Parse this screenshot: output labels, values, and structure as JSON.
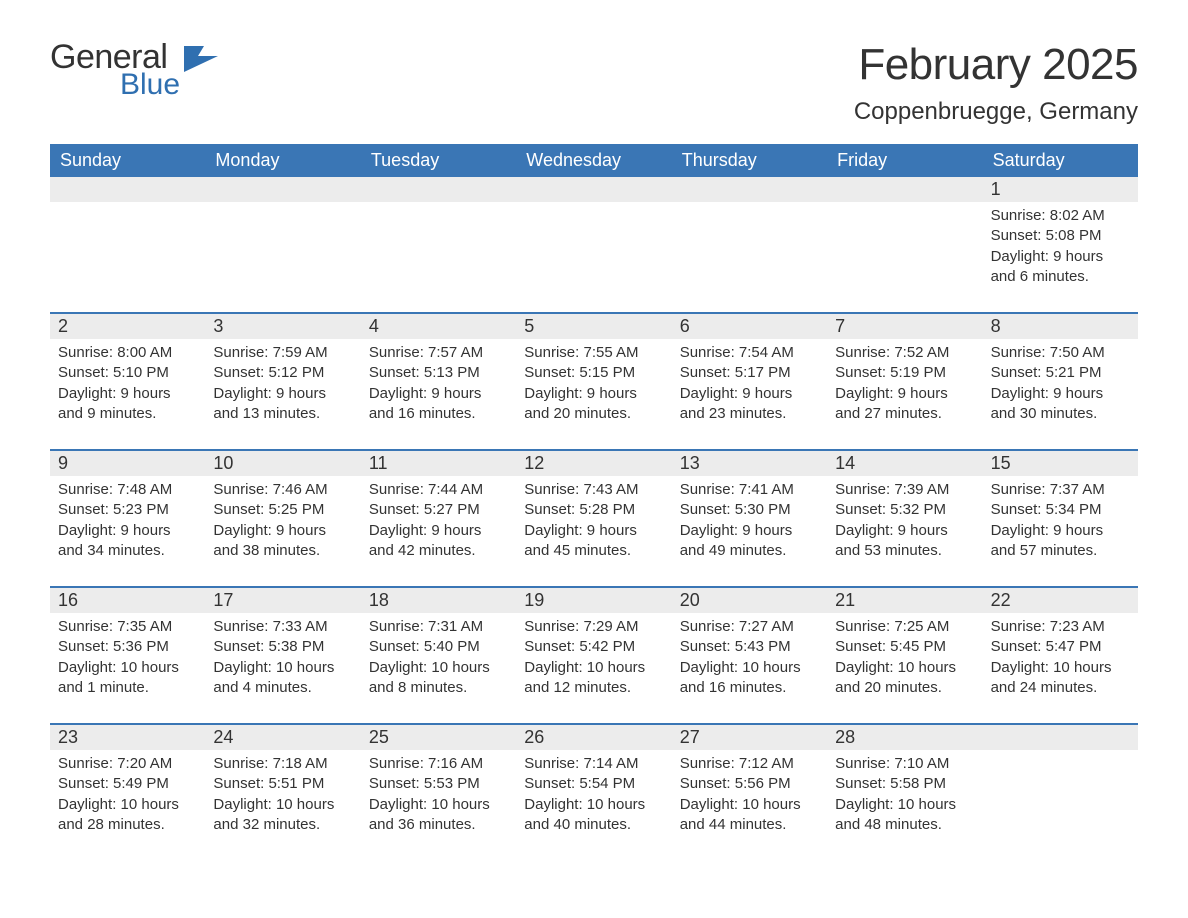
{
  "logo": {
    "word1": "General",
    "word2": "Blue",
    "flag_color": "#2f6fb0"
  },
  "title": "February 2025",
  "location": "Coppenbruegge, Germany",
  "header_bg": "#3a76b5",
  "strip_bg": "#ececec",
  "weekdays": [
    "Sunday",
    "Monday",
    "Tuesday",
    "Wednesday",
    "Thursday",
    "Friday",
    "Saturday"
  ],
  "weeks": [
    {
      "nums": [
        "",
        "",
        "",
        "",
        "",
        "",
        "1"
      ],
      "bodies": [
        "",
        "",
        "",
        "",
        "",
        "",
        "Sunrise: 8:02 AM\nSunset: 5:08 PM\nDaylight: 9 hours and 6 minutes."
      ]
    },
    {
      "nums": [
        "2",
        "3",
        "4",
        "5",
        "6",
        "7",
        "8"
      ],
      "bodies": [
        "Sunrise: 8:00 AM\nSunset: 5:10 PM\nDaylight: 9 hours and 9 minutes.",
        "Sunrise: 7:59 AM\nSunset: 5:12 PM\nDaylight: 9 hours and 13 minutes.",
        "Sunrise: 7:57 AM\nSunset: 5:13 PM\nDaylight: 9 hours and 16 minutes.",
        "Sunrise: 7:55 AM\nSunset: 5:15 PM\nDaylight: 9 hours and 20 minutes.",
        "Sunrise: 7:54 AM\nSunset: 5:17 PM\nDaylight: 9 hours and 23 minutes.",
        "Sunrise: 7:52 AM\nSunset: 5:19 PM\nDaylight: 9 hours and 27 minutes.",
        "Sunrise: 7:50 AM\nSunset: 5:21 PM\nDaylight: 9 hours and 30 minutes."
      ]
    },
    {
      "nums": [
        "9",
        "10",
        "11",
        "12",
        "13",
        "14",
        "15"
      ],
      "bodies": [
        "Sunrise: 7:48 AM\nSunset: 5:23 PM\nDaylight: 9 hours and 34 minutes.",
        "Sunrise: 7:46 AM\nSunset: 5:25 PM\nDaylight: 9 hours and 38 minutes.",
        "Sunrise: 7:44 AM\nSunset: 5:27 PM\nDaylight: 9 hours and 42 minutes.",
        "Sunrise: 7:43 AM\nSunset: 5:28 PM\nDaylight: 9 hours and 45 minutes.",
        "Sunrise: 7:41 AM\nSunset: 5:30 PM\nDaylight: 9 hours and 49 minutes.",
        "Sunrise: 7:39 AM\nSunset: 5:32 PM\nDaylight: 9 hours and 53 minutes.",
        "Sunrise: 7:37 AM\nSunset: 5:34 PM\nDaylight: 9 hours and 57 minutes."
      ]
    },
    {
      "nums": [
        "16",
        "17",
        "18",
        "19",
        "20",
        "21",
        "22"
      ],
      "bodies": [
        "Sunrise: 7:35 AM\nSunset: 5:36 PM\nDaylight: 10 hours and 1 minute.",
        "Sunrise: 7:33 AM\nSunset: 5:38 PM\nDaylight: 10 hours and 4 minutes.",
        "Sunrise: 7:31 AM\nSunset: 5:40 PM\nDaylight: 10 hours and 8 minutes.",
        "Sunrise: 7:29 AM\nSunset: 5:42 PM\nDaylight: 10 hours and 12 minutes.",
        "Sunrise: 7:27 AM\nSunset: 5:43 PM\nDaylight: 10 hours and 16 minutes.",
        "Sunrise: 7:25 AM\nSunset: 5:45 PM\nDaylight: 10 hours and 20 minutes.",
        "Sunrise: 7:23 AM\nSunset: 5:47 PM\nDaylight: 10 hours and 24 minutes."
      ]
    },
    {
      "nums": [
        "23",
        "24",
        "25",
        "26",
        "27",
        "28",
        ""
      ],
      "bodies": [
        "Sunrise: 7:20 AM\nSunset: 5:49 PM\nDaylight: 10 hours and 28 minutes.",
        "Sunrise: 7:18 AM\nSunset: 5:51 PM\nDaylight: 10 hours and 32 minutes.",
        "Sunrise: 7:16 AM\nSunset: 5:53 PM\nDaylight: 10 hours and 36 minutes.",
        "Sunrise: 7:14 AM\nSunset: 5:54 PM\nDaylight: 10 hours and 40 minutes.",
        "Sunrise: 7:12 AM\nSunset: 5:56 PM\nDaylight: 10 hours and 44 minutes.",
        "Sunrise: 7:10 AM\nSunset: 5:58 PM\nDaylight: 10 hours and 48 minutes.",
        ""
      ]
    }
  ]
}
